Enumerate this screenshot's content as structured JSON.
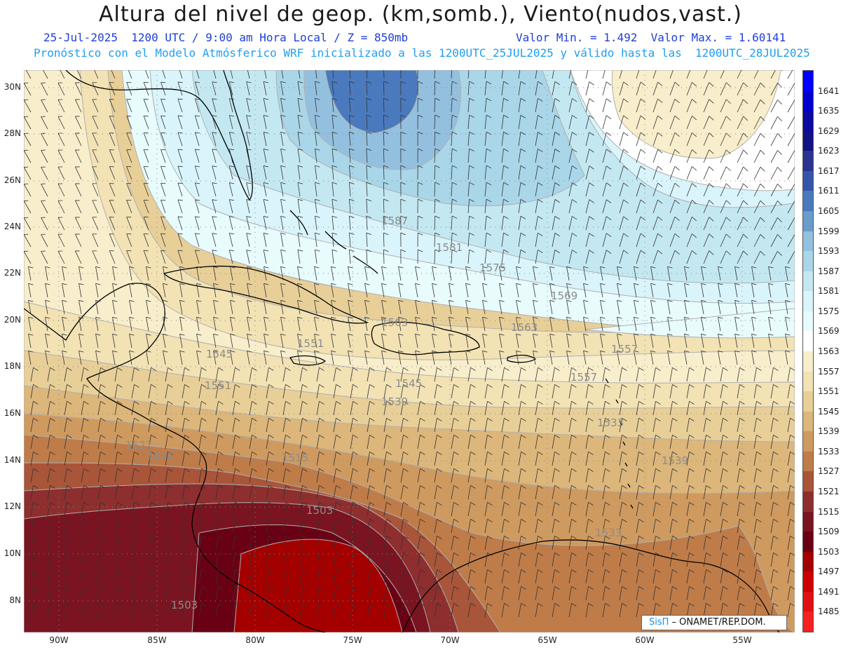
{
  "header": {
    "title": "Altura del nivel de geop. (km,somb.), Viento(nudos,vast.)",
    "date": "25-Jul-2025",
    "time_info": "1200 UTC / 9:00 am Hora Local / Z = 850mb",
    "min_value": "Valor Min. = 1.492",
    "max_value": "Valor Max. = 1.60141",
    "model_info": "Pronóstico con el Modelo Atmósferico WRF inicializado a las 1200UTC_25JUL2025 y válido hasta las  1200UTC_28JUL2025"
  },
  "axes": {
    "lat_labels": [
      "30N",
      "28N",
      "26N",
      "24N",
      "22N",
      "20N",
      "18N",
      "16N",
      "14N",
      "12N",
      "10N",
      "8N"
    ],
    "lon_labels": [
      "90W",
      "85W",
      "80W",
      "75W",
      "70W",
      "65W",
      "60W",
      "55W"
    ]
  },
  "contour_labels": [
    "1587",
    "1581",
    "1575",
    "1569",
    "1563",
    "1557",
    "1551",
    "1545",
    "1539",
    "1533",
    "1527",
    "1521",
    "1515",
    "1503"
  ],
  "colorbar": {
    "labels": [
      "1641",
      "1635",
      "1629",
      "1623",
      "1617",
      "1611",
      "1605",
      "1599",
      "1593",
      "1587",
      "1581",
      "1575",
      "1569",
      "1563",
      "1557",
      "1551",
      "1545",
      "1539",
      "1533",
      "1527",
      "1521",
      "1515",
      "1509",
      "1503",
      "1497",
      "1491",
      "1485"
    ],
    "colors": [
      "#0000ff",
      "#0000d0",
      "#0a0a9e",
      "#121285",
      "#2a3590",
      "#3555a8",
      "#4a7abd",
      "#6a9ccd",
      "#93c0de",
      "#a9d6e8",
      "#c3e8f2",
      "#d9f4fa",
      "#e8fbfd",
      "#ffffff",
      "#f8eecb",
      "#f2e2b4",
      "#e8cf98",
      "#dcb67a",
      "#cf9a5f",
      "#bf7c49",
      "#a8553a",
      "#8e2e2e",
      "#7a1420",
      "#6a0014",
      "#a40000",
      "#cc0000",
      "#e01010",
      "#f52020"
    ]
  },
  "credit": {
    "brand": "SisΠ",
    "text": " – ONAMET/REP.DOM."
  }
}
